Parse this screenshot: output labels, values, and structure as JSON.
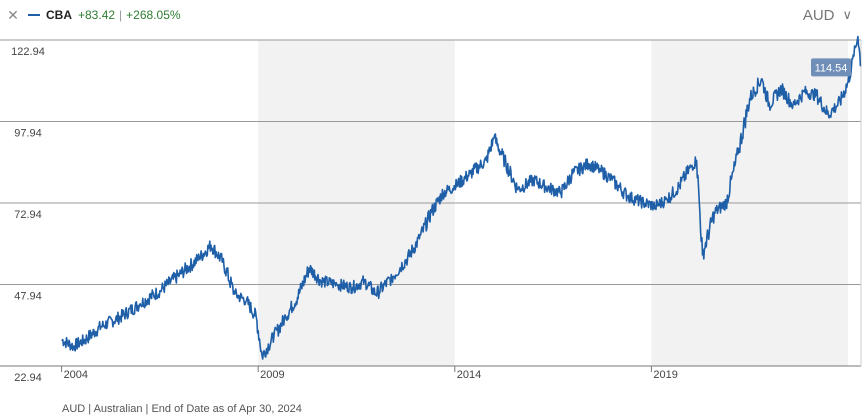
{
  "legend": {
    "close_icon": "close-icon",
    "ticker": "CBA",
    "change_abs": "+83.42",
    "separator": "|",
    "change_pct": "+268.05%",
    "series_color": "#1f5fa8",
    "change_color": "#2e7d32"
  },
  "currency_select": {
    "value": "AUD",
    "icon": "chevron-down-icon"
  },
  "footer": {
    "note": "AUD | Australian | End of Date as of Apr 30, 2024"
  },
  "chart_data": {
    "type": "line",
    "title": "",
    "xlabel": "",
    "ylabel": "",
    "y_ticks": [
      "122.94",
      "97.94",
      "72.94",
      "47.94",
      "22.94"
    ],
    "ylim": [
      22.94,
      122.94
    ],
    "x_ticks": [
      "2004",
      "2009",
      "2014",
      "2019"
    ],
    "xlim": [
      2003.96,
      2024.33
    ],
    "shaded_periods": [
      [
        2009,
        2014
      ],
      [
        2019,
        2024.0
      ]
    ],
    "grid": true,
    "last_value_label": "114.54",
    "series": [
      {
        "color": "#1f5fa8",
        "x": [
          2004.0,
          2004.3,
          2004.6,
          2005.0,
          2005.5,
          2006.0,
          2006.5,
          2007.0,
          2007.5,
          2007.8,
          2008.1,
          2008.4,
          2008.7,
          2008.95,
          2009.1,
          2009.4,
          2009.7,
          2010.0,
          2010.3,
          2010.6,
          2011.0,
          2011.4,
          2011.7,
          2012.0,
          2012.4,
          2012.8,
          2013.1,
          2013.4,
          2013.7,
          2014.0,
          2014.4,
          2014.8,
          2015.0,
          2015.3,
          2015.6,
          2016.0,
          2016.3,
          2016.7,
          2017.0,
          2017.4,
          2017.7,
          2018.0,
          2018.4,
          2018.8,
          2019.1,
          2019.4,
          2019.7,
          2020.0,
          2020.15,
          2020.3,
          2020.6,
          2020.9,
          2021.2,
          2021.5,
          2021.8,
          2022.0,
          2022.3,
          2022.6,
          2022.9,
          2023.2,
          2023.5,
          2023.8,
          2024.0,
          2024.15,
          2024.25,
          2024.33
        ],
        "y": [
          31,
          29,
          31,
          35,
          38,
          42,
          46,
          51,
          56,
          60,
          55,
          45,
          43,
          38,
          26,
          32,
          38,
          44,
          53,
          49,
          48,
          47,
          49,
          45,
          50,
          56,
          62,
          70,
          76,
          78,
          82,
          86,
          93,
          85,
          77,
          80,
          78,
          76,
          82,
          85,
          83,
          80,
          75,
          73,
          72,
          74,
          78,
          84,
          86,
          57,
          70,
          73,
          88,
          105,
          111,
          103,
          108,
          103,
          107,
          106,
          100,
          104,
          110,
          118,
          124,
          115
        ]
      }
    ]
  }
}
